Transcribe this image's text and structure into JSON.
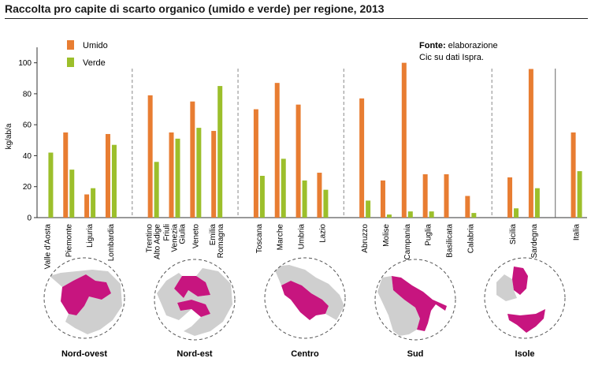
{
  "title": "Raccolta pro capite di scarto organico (umido e verde) per regione, 2013",
  "source": {
    "bold": "Fonte:",
    "line1": "elaborazione",
    "line2": "Cic su dati Ispra."
  },
  "colors": {
    "umido": "#e87d32",
    "verde": "#9cbf2b",
    "map_highlight": "#c7157f",
    "map_other": "#cfcfcf"
  },
  "chart_data": {
    "type": "bar",
    "title": "Raccolta pro capite di scarto organico (umido e verde) per regione, 2013",
    "ylabel": "kg/ab/a",
    "xlabel": "",
    "ylim": [
      0,
      110
    ],
    "yticks": [
      0,
      20,
      40,
      60,
      80,
      100
    ],
    "legend": "top-left",
    "grid": false,
    "categories": [
      [
        "Valle d'Aosta"
      ],
      [
        "Piemonte"
      ],
      [
        "Liguria"
      ],
      [
        "Lombardia"
      ],
      [
        "Trentino",
        "Alto Adige"
      ],
      [
        "Friuli",
        "Venezia",
        "Giulia"
      ],
      [
        "Veneto"
      ],
      [
        "Emilia",
        "Romagna"
      ],
      [
        "Toscana"
      ],
      [
        "Marche"
      ],
      [
        "Umbria"
      ],
      [
        "Lazio"
      ],
      [
        "Abruzzo"
      ],
      [
        "Molise"
      ],
      [
        "Campania"
      ],
      [
        "Puglia"
      ],
      [
        "Basilicata"
      ],
      [
        "Calabria"
      ],
      [
        "Sicilia"
      ],
      [
        "Sardegna"
      ],
      [
        "Italia"
      ]
    ],
    "series": [
      {
        "name": "Umido",
        "values": [
          0,
          55,
          15,
          54,
          79,
          55,
          75,
          56,
          70,
          87,
          73,
          29,
          77,
          24,
          100,
          28,
          28,
          14,
          26,
          96,
          55
        ]
      },
      {
        "name": "Verde",
        "values": [
          42,
          31,
          19,
          47,
          36,
          51,
          58,
          85,
          27,
          38,
          24,
          18,
          11,
          2,
          4,
          4,
          0,
          3,
          6,
          19,
          30
        ]
      }
    ],
    "groups": [
      {
        "name": "Nord-ovest",
        "size": 4
      },
      {
        "name": "Nord-est",
        "size": 4
      },
      {
        "name": "Centro",
        "size": 4
      },
      {
        "name": "Sud",
        "size": 6
      },
      {
        "name": "Isole",
        "size": 2
      },
      {
        "name": "",
        "size": 1
      }
    ]
  }
}
